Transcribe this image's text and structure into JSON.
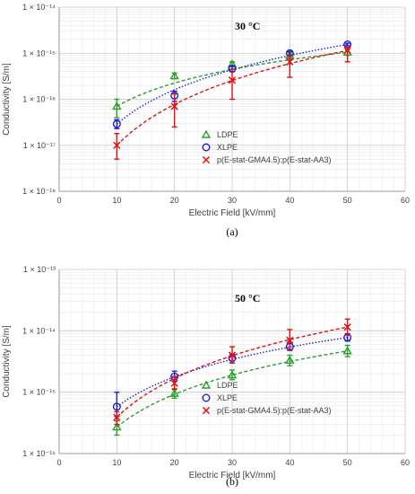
{
  "chart_data": [
    {
      "type": "scatter",
      "panel_label": "(a)",
      "annotation": "30 °C",
      "xlabel": "Electric Field [kV/mm]",
      "ylabel": "Conductivity [S/m]",
      "xlim": [
        0,
        60
      ],
      "xticks": [
        0,
        10,
        20,
        30,
        40,
        50,
        60
      ],
      "y_scale": "log",
      "ylim": [
        1e-18,
        1e-14
      ],
      "yticks": [
        {
          "value": 1e-18,
          "label": "1 × 10⁻¹⁸"
        },
        {
          "value": 1e-17,
          "label": "1 × 10⁻¹⁷"
        },
        {
          "value": 1e-16,
          "label": "1 × 10⁻¹⁶"
        },
        {
          "value": 1e-15,
          "label": "1 × 10⁻¹⁵"
        },
        {
          "value": 1e-14,
          "label": "1 × 10⁻¹⁴"
        }
      ],
      "grid": true,
      "legend_position": "bottom-right",
      "series": [
        {
          "name": "LDPE",
          "marker": "triangle",
          "color": "#2ca02c",
          "line": "dashed",
          "x": [
            10,
            20,
            30,
            40,
            50
          ],
          "y": [
            7e-17,
            3.2e-16,
            5.8e-16,
            9e-16,
            1.05e-15
          ],
          "err_low": [
            4e-17,
            2.8e-16,
            5.2e-16,
            7.5e-16,
            9e-16
          ],
          "err_high": [
            1e-16,
            3.7e-16,
            6.5e-16,
            1.05e-15,
            1.2e-15
          ]
        },
        {
          "name": "XLPE",
          "marker": "circle",
          "color": "#1f1fd0",
          "line": "dotted",
          "x": [
            10,
            20,
            30,
            40,
            50
          ],
          "y": [
            2.9e-17,
            1.2e-16,
            4.6e-16,
            1e-15,
            1.55e-15
          ],
          "err_low": [
            2.3e-17,
            9e-17,
            4e-16,
            9e-16,
            1.45e-15
          ],
          "err_high": [
            3.6e-17,
            1.5e-16,
            5.3e-16,
            1.1e-15,
            1.65e-15
          ]
        },
        {
          "name": "p(E-stat-GMA4.5):p(E-stat-AA3)",
          "marker": "x",
          "color": "#e01010",
          "line": "dashed",
          "x": [
            10,
            20,
            30,
            40,
            50
          ],
          "y": [
            1e-17,
            7e-17,
            2.6e-16,
            6.5e-16,
            1.15e-15
          ],
          "err_low": [
            5e-18,
            2.5e-17,
            1e-16,
            3e-16,
            6.5e-16
          ],
          "err_high": [
            1.8e-17,
            1.3e-16,
            4.5e-16,
            9e-16,
            1.35e-15
          ]
        }
      ]
    },
    {
      "type": "scatter",
      "panel_label": "(b)",
      "annotation": "50 °C",
      "xlabel": "Electric Field [kV/mm]",
      "ylabel": "Conductivity [S/m]",
      "xlim": [
        0,
        60
      ],
      "xticks": [
        0,
        10,
        20,
        30,
        40,
        50,
        60
      ],
      "y_scale": "log",
      "ylim": [
        1e-16,
        1e-13
      ],
      "yticks": [
        {
          "value": 1e-16,
          "label": "1 × 10⁻¹⁶"
        },
        {
          "value": 1e-15,
          "label": "1 × 10⁻¹⁵"
        },
        {
          "value": 1e-14,
          "label": "1 × 10⁻¹⁴"
        },
        {
          "value": 1e-13,
          "label": "1 × 10⁻¹³"
        }
      ],
      "grid": true,
      "legend_position": "bottom-right",
      "series": [
        {
          "name": "LDPE",
          "marker": "triangle",
          "color": "#2ca02c",
          "line": "dashed",
          "x": [
            10,
            20,
            30,
            40,
            50
          ],
          "y": [
            2.7e-16,
            9.5e-16,
            1.9e-15,
            3.3e-15,
            4.7e-15
          ],
          "err_low": [
            2e-16,
            8e-16,
            1.6e-15,
            2.7e-15,
            3.8e-15
          ],
          "err_high": [
            3.4e-16,
            1.15e-15,
            2.3e-15,
            4e-15,
            5.8e-15
          ]
        },
        {
          "name": "XLPE",
          "marker": "circle",
          "color": "#1f1fd0",
          "line": "dotted",
          "x": [
            10,
            20,
            30,
            40,
            50
          ],
          "y": [
            5.8e-16,
            1.8e-15,
            3.6e-15,
            5.5e-15,
            7.8e-15
          ],
          "err_low": [
            4e-16,
            1.5e-15,
            3e-15,
            4.8e-15,
            6.8e-15
          ],
          "err_high": [
            1e-15,
            2.2e-15,
            4.2e-15,
            6.5e-15,
            9e-15
          ]
        },
        {
          "name": "p(E-stat-GMA4.5):p(E-stat-AA3)",
          "marker": "x",
          "color": "#e01010",
          "line": "dashed",
          "x": [
            10,
            20,
            30,
            40,
            50
          ],
          "y": [
            3.9e-16,
            1.4e-15,
            4e-15,
            7e-15,
            1.15e-14
          ],
          "err_low": [
            3e-16,
            1.1e-15,
            3e-15,
            5e-15,
            8.5e-15
          ],
          "err_high": [
            4.8e-16,
            1.8e-15,
            5.5e-15,
            1.05e-14,
            1.55e-14
          ]
        }
      ]
    }
  ]
}
